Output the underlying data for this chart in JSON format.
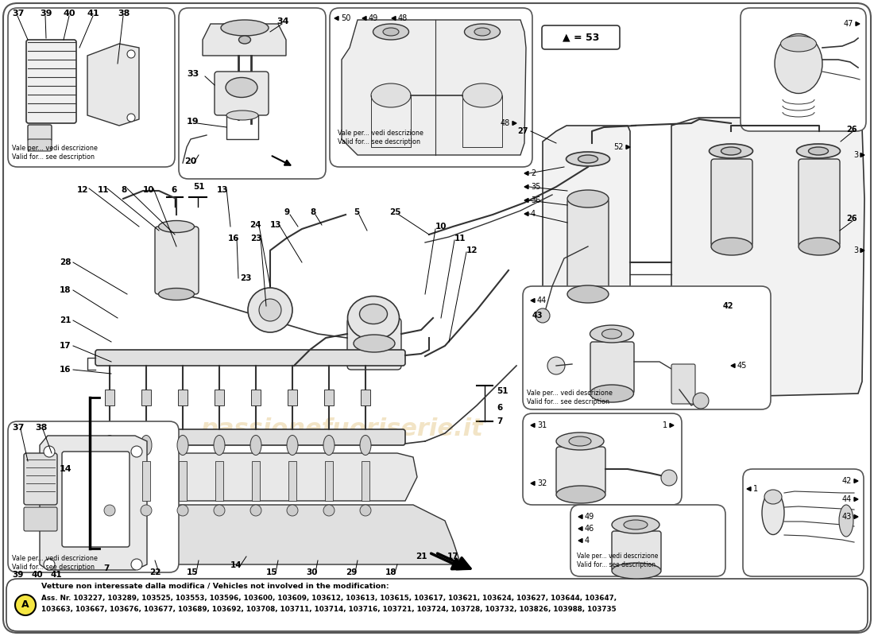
{
  "bg_color": "#ffffff",
  "watermark_text": "passionefuoriserie.it",
  "watermark_color": "#d4a843",
  "watermark_alpha": 0.3,
  "legend_box_text": "▲ = 53",
  "bottom_note_title": "Vetture non interessate dalla modifica / Vehicles not involved in the modification:",
  "bottom_note_line1": "Ass. Nr. 103227, 103289, 103525, 103553, 103596, 103600, 103609, 103612, 103613, 103615, 103617, 103621, 103624, 103627, 103644, 103647,",
  "bottom_note_line2": "103663, 103667, 103676, 103677, 103689, 103692, 103708, 103711, 103714, 103716, 103721, 103724, 103728, 103732, 103826, 103988, 103735",
  "circle_A_color": "#f5e642",
  "valid_text_it": "Vale per... vedi descrizione",
  "valid_text_en": "Valid for... see description",
  "fig_width": 11.0,
  "fig_height": 8.0,
  "dpi": 100
}
